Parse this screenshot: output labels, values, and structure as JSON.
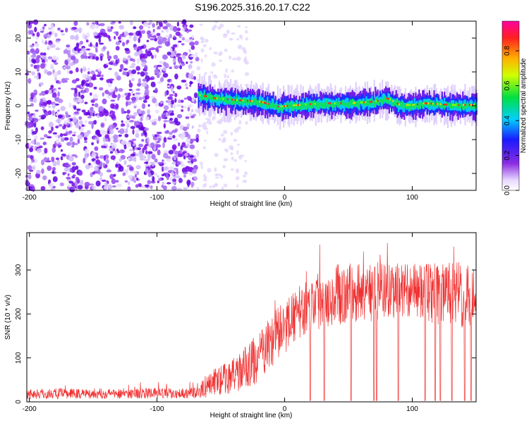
{
  "title": "S196.2025.316.20.17.C22",
  "chart_data": [
    {
      "type": "heatmap",
      "name": "spectrogram",
      "xlabel": "Height of straight line (km)",
      "ylabel": "Frequency (Hz)",
      "xlim": [
        -202,
        150
      ],
      "ylim": [
        -25,
        25
      ],
      "xticks": [
        -200,
        -100,
        0,
        100
      ],
      "xtick_labels": [
        "-200",
        "-100",
        "0",
        "100"
      ],
      "yticks": [
        -20,
        -10,
        0,
        10,
        20
      ],
      "ytick_labels": [
        "-20",
        "-10",
        "0",
        "10",
        "20"
      ],
      "colorbar": {
        "label": "Normalized spectral amplitude",
        "range": [
          0,
          0.97
        ],
        "ticks": [
          0,
          0.2,
          0.4,
          0.6,
          0.8
        ],
        "tick_labels": [
          "0.0",
          "0.2",
          "0.4",
          "0.6",
          "0.8"
        ]
      },
      "noise_region_x": [
        -202,
        -68
      ],
      "signal_onset_x": -68,
      "ridge": [
        {
          "x": -68,
          "f": 3
        },
        {
          "x": -55,
          "f": 2
        },
        {
          "x": -40,
          "f": 1.5
        },
        {
          "x": -20,
          "f": 1
        },
        {
          "x": -5,
          "f": -0.5
        },
        {
          "x": 10,
          "f": 0
        },
        {
          "x": 30,
          "f": 0.5
        },
        {
          "x": 50,
          "f": 0.5
        },
        {
          "x": 70,
          "f": 1
        },
        {
          "x": 80,
          "f": 2
        },
        {
          "x": 90,
          "f": 0
        },
        {
          "x": 100,
          "f": 0
        },
        {
          "x": 110,
          "f": 0.5
        },
        {
          "x": 130,
          "f": 0
        },
        {
          "x": 150,
          "f": 0
        }
      ]
    },
    {
      "type": "line",
      "name": "snr",
      "xlabel": "Height of straight line (km)",
      "ylabel": "SNR (10 * v/v)",
      "xlim": [
        -202,
        150
      ],
      "ylim": [
        0,
        385
      ],
      "xticks": [
        -200,
        -100,
        0,
        100
      ],
      "xtick_labels": [
        "-200",
        "-100",
        "0",
        "100"
      ],
      "yticks": [
        0,
        100,
        200,
        300
      ],
      "ytick_labels": [
        "0",
        "100",
        "200",
        "300"
      ],
      "color": "#f03030",
      "envelope": [
        {
          "x": -202,
          "mean": 18,
          "amp": 12
        },
        {
          "x": -68,
          "mean": 20,
          "amp": 12
        },
        {
          "x": -60,
          "mean": 40,
          "amp": 30
        },
        {
          "x": -40,
          "mean": 60,
          "amp": 40
        },
        {
          "x": -20,
          "mean": 100,
          "amp": 60
        },
        {
          "x": -10,
          "mean": 140,
          "amp": 60
        },
        {
          "x": 0,
          "mean": 170,
          "amp": 60
        },
        {
          "x": 10,
          "mean": 200,
          "amp": 60
        },
        {
          "x": 30,
          "mean": 240,
          "amp": 70
        },
        {
          "x": 60,
          "mean": 250,
          "amp": 70
        },
        {
          "x": 100,
          "mean": 255,
          "amp": 60
        },
        {
          "x": 130,
          "mean": 240,
          "amp": 80
        },
        {
          "x": 150,
          "mean": 245,
          "amp": 70
        }
      ],
      "dropouts_x": [
        20,
        31,
        52,
        70,
        72,
        89,
        110,
        118,
        122,
        131,
        141,
        146
      ]
    }
  ]
}
